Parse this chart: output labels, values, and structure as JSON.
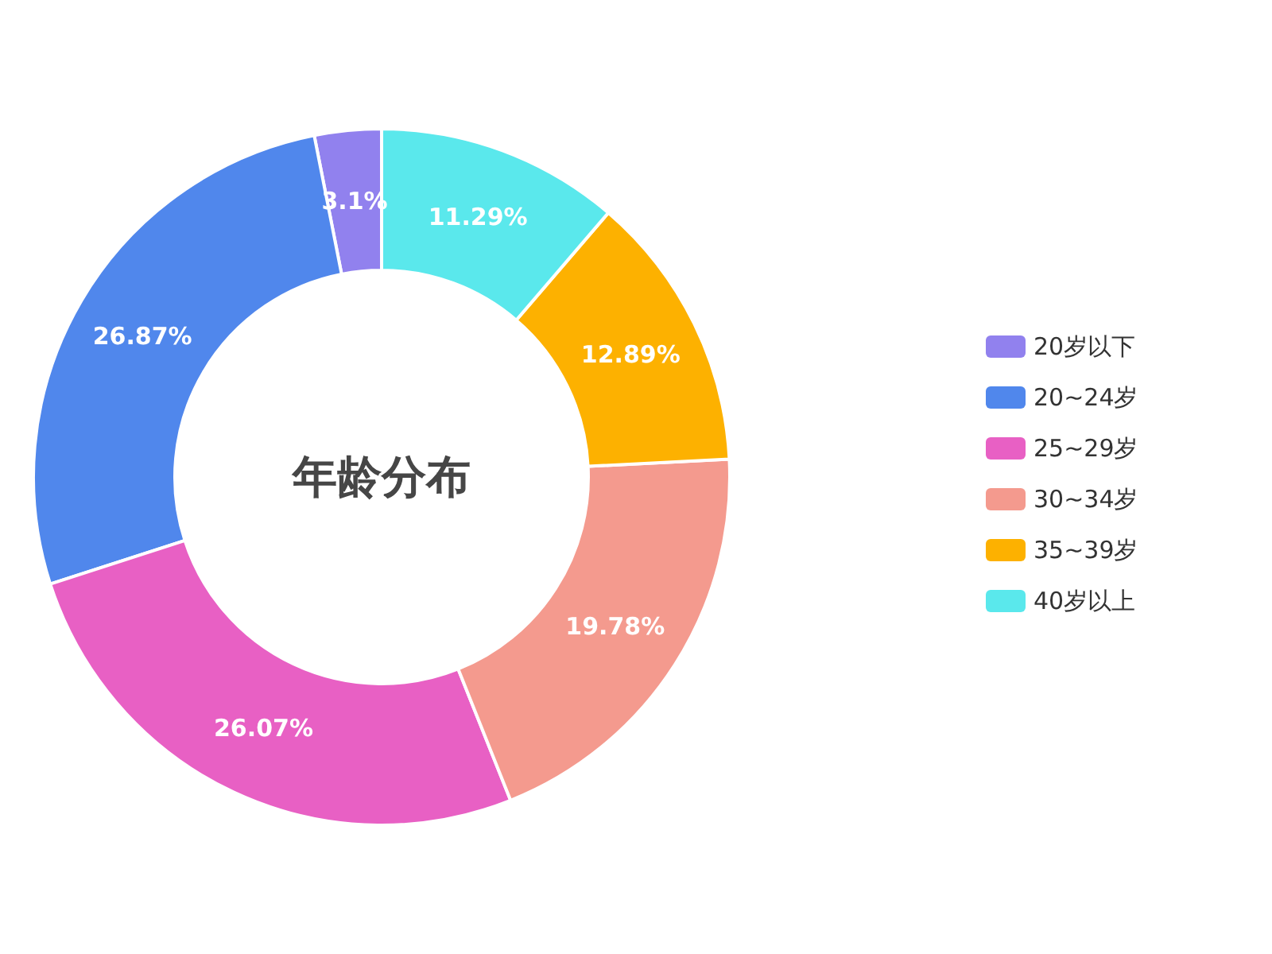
{
  "chart_data": {
    "type": "donut",
    "title": "年龄分布",
    "categories": [
      "20岁以下",
      "20~24岁",
      "25~29岁",
      "30~34岁",
      "35~39岁",
      "40岁以上"
    ],
    "values": [
      3.1,
      26.87,
      26.07,
      19.78,
      12.89,
      11.29
    ],
    "value_labels": [
      "3.1%",
      "26.87%",
      "26.07%",
      "19.78%",
      "12.89%",
      "11.29%"
    ],
    "colors": [
      "#9181ee",
      "#5087ec",
      "#e860c4",
      "#f49a8e",
      "#fdb100",
      "#5ae8ec"
    ],
    "legend": "right"
  }
}
